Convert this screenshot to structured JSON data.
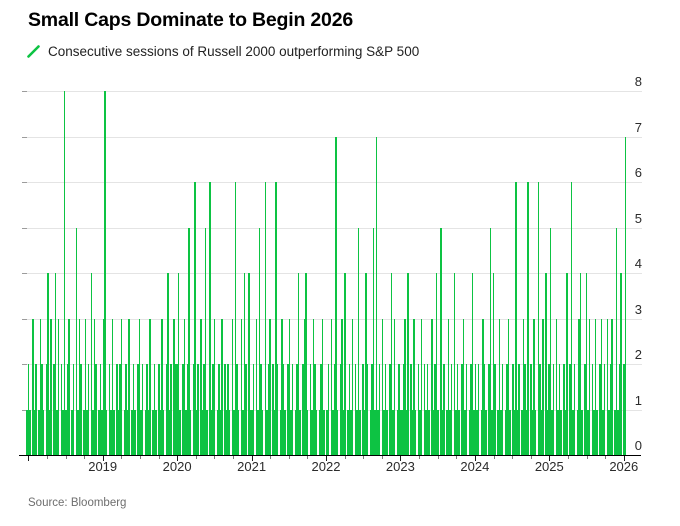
{
  "header": {
    "title": "Small Caps Dominate to Begin 2026"
  },
  "legend": {
    "icon": "green-slash-icon",
    "label": "Consecutive sessions of Russell 2000 outperforming S&P 500"
  },
  "footer": {
    "source": "Source: Bloomberg"
  },
  "colors": {
    "background": "#ffffff",
    "bar_green": "#0dc343",
    "gridline": "#e4e4e4",
    "gridline_stub": "#9c9c9c",
    "axis_line": "#000000",
    "tick_minor": "#7a7a7a",
    "tick_major": "#1a1a1a",
    "title_text": "#000000",
    "legend_text": "#222222",
    "axis_label_text": "#2b2b2b",
    "source_text": "#6e6e6e"
  },
  "chart_data": {
    "type": "bar",
    "title": "Small Caps Dominate to Begin 2026",
    "series_label": "Consecutive sessions of Russell 2000 outperforming S&P 500",
    "xlabel": "",
    "ylabel": "",
    "ylim": [
      0,
      8
    ],
    "yticks": [
      8,
      7,
      6,
      5,
      4,
      3,
      2,
      1,
      0
    ],
    "y_axis_side": "right",
    "grid": "horizontal",
    "x_domain_years": [
      2017.97,
      2026.03
    ],
    "x_year_labels": [
      "2019",
      "2020",
      "2021",
      "2022",
      "2023",
      "2024",
      "2025",
      "2026"
    ],
    "x_minor_tick_interval_years": 0.25,
    "values_start_year": 2018.0,
    "values_per_year": 49.6,
    "values": [
      1,
      2,
      1,
      0,
      3,
      1,
      2,
      0,
      1,
      3,
      2,
      1,
      0,
      2,
      4,
      1,
      3,
      0,
      2,
      4,
      1,
      3,
      0,
      2,
      1,
      8,
      1,
      2,
      3,
      0,
      1,
      2,
      0,
      5,
      1,
      3,
      2,
      0,
      1,
      3,
      1,
      2,
      0,
      4,
      1,
      3,
      2,
      0,
      1,
      2,
      1,
      3,
      8,
      1,
      0,
      2,
      1,
      3,
      1,
      0,
      2,
      1,
      2,
      3,
      0,
      1,
      2,
      1,
      3,
      0,
      1,
      2,
      1,
      0,
      2,
      3,
      1,
      2,
      0,
      1,
      2,
      1,
      3,
      0,
      1,
      2,
      1,
      0,
      2,
      1,
      3,
      1,
      0,
      2,
      4,
      1,
      2,
      0,
      3,
      2,
      2,
      4,
      1,
      0,
      2,
      3,
      1,
      2,
      5,
      1,
      0,
      2,
      6,
      1,
      2,
      0,
      3,
      1,
      2,
      5,
      1,
      0,
      6,
      1,
      2,
      3,
      0,
      1,
      2,
      1,
      3,
      0,
      2,
      1,
      2,
      1,
      0,
      3,
      1,
      6,
      2,
      1,
      0,
      3,
      1,
      4,
      2,
      0,
      4,
      1,
      1,
      2,
      0,
      3,
      1,
      5,
      2,
      1,
      0,
      6,
      1,
      2,
      3,
      0,
      2,
      1,
      6,
      2,
      0,
      1,
      3,
      2,
      1,
      0,
      2,
      3,
      1,
      2,
      0,
      1,
      2,
      4,
      1,
      0,
      2,
      3,
      4,
      1,
      0,
      2,
      1,
      3,
      2,
      1,
      0,
      1,
      2,
      3,
      1,
      0,
      1,
      2,
      0,
      3,
      1,
      2,
      7,
      1,
      0,
      2,
      3,
      1,
      4,
      0,
      1,
      2,
      1,
      3,
      0,
      2,
      1,
      5,
      1,
      0,
      2,
      1,
      4,
      2,
      0,
      1,
      2,
      5,
      1,
      7,
      1,
      2,
      0,
      3,
      1,
      2,
      1,
      0,
      2,
      4,
      1,
      3,
      0,
      1,
      2,
      1,
      1,
      2,
      3,
      1,
      4,
      0,
      2,
      1,
      3,
      1,
      0,
      2,
      1,
      3,
      0,
      2,
      1,
      2,
      1,
      0,
      3,
      1,
      2,
      4,
      1,
      0,
      5,
      1,
      2,
      0,
      1,
      3,
      1,
      2,
      0,
      4,
      1,
      2,
      1,
      0,
      2,
      3,
      1,
      2,
      0,
      1,
      2,
      4,
      1,
      2,
      1,
      2,
      0,
      1,
      3,
      2,
      1,
      0,
      2,
      5,
      1,
      4,
      2,
      0,
      1,
      3,
      1,
      2,
      0,
      1,
      2,
      3,
      1,
      0,
      2,
      1,
      6,
      1,
      2,
      0,
      1,
      3,
      2,
      1,
      6,
      0,
      2,
      1,
      3,
      1,
      0,
      6,
      2,
      1,
      3,
      0,
      4,
      1,
      2,
      5,
      1,
      2,
      0,
      3,
      1,
      2,
      1,
      0,
      2,
      1,
      4,
      0,
      2,
      6,
      1,
      2,
      0,
      1,
      3,
      4,
      1,
      0,
      2,
      4,
      1,
      3,
      0,
      2,
      1,
      3,
      1,
      0,
      2,
      3,
      1,
      2,
      0,
      3,
      1,
      2,
      3,
      0,
      1,
      5,
      1,
      2,
      4,
      0,
      2,
      7
    ]
  }
}
